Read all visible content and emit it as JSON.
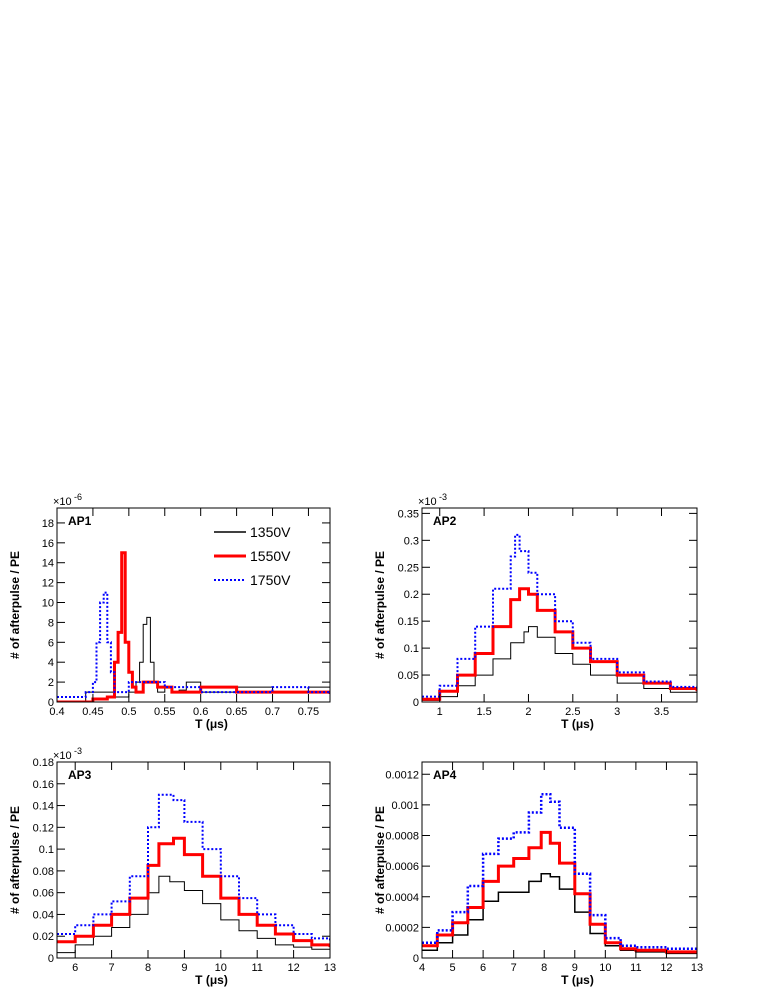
{
  "chart_data": [
    {
      "type": "line",
      "panel_label": "AP1",
      "ylabel": "# of afterpulse / PE",
      "xlabel": "T (μs)",
      "exponent": {
        "base": "×10",
        "power": "-6"
      },
      "xlim": [
        0.4,
        0.78
      ],
      "ylim": [
        0,
        19.5
      ],
      "xticks": [
        0.4,
        0.45,
        0.5,
        0.55,
        0.6,
        0.65,
        0.7,
        0.75
      ],
      "xtick_labels": [
        "0.4",
        "0.45",
        "0.5",
        "0.55",
        "0.6",
        "0.65",
        "0.7",
        "0.75"
      ],
      "yticks": [
        0,
        2,
        4,
        6,
        8,
        10,
        12,
        14,
        16,
        18
      ],
      "ytick_labels": [
        "0",
        "2",
        "4",
        "6",
        "8",
        "10",
        "12",
        "14",
        "16",
        "18"
      ],
      "legend": {
        "position": "top-right",
        "entries": [
          "1350V",
          "1550V",
          "1750V"
        ]
      },
      "series": [
        {
          "name": "1350V",
          "color": "#000000",
          "style": "solid",
          "width": 1,
          "x": [
            0.4,
            0.44,
            0.48,
            0.5,
            0.51,
            0.515,
            0.52,
            0.525,
            0.53,
            0.535,
            0.54,
            0.55,
            0.56,
            0.57,
            0.58,
            0.6,
            0.65,
            0.7,
            0.75,
            0.78
          ],
          "y": [
            0,
            1.0,
            0.5,
            1.0,
            2.0,
            4.0,
            7.8,
            8.5,
            4.0,
            2.0,
            1.0,
            1.5,
            1.0,
            1.2,
            2.0,
            1.0,
            1.5,
            1.0,
            1.5,
            1.0
          ]
        },
        {
          "name": "1550V",
          "color": "#ff0000",
          "style": "solid",
          "width": 3,
          "x": [
            0.4,
            0.45,
            0.47,
            0.48,
            0.485,
            0.49,
            0.495,
            0.5,
            0.505,
            0.51,
            0.52,
            0.54,
            0.56,
            0.6,
            0.65,
            0.7,
            0.75,
            0.78
          ],
          "y": [
            0,
            0.3,
            0.5,
            4.0,
            7.0,
            15.0,
            6.0,
            3.0,
            1.5,
            1.0,
            2.0,
            1.5,
            1.0,
            1.5,
            1.0,
            1.0,
            1.0,
            0.8
          ]
        },
        {
          "name": "1750V",
          "color": "#0000ff",
          "style": "dotted",
          "width": 2,
          "x": [
            0.4,
            0.44,
            0.45,
            0.455,
            0.46,
            0.465,
            0.47,
            0.475,
            0.48,
            0.49,
            0.5,
            0.52,
            0.55,
            0.6,
            0.65,
            0.7,
            0.75,
            0.78
          ],
          "y": [
            0.5,
            1.0,
            2.0,
            6.0,
            10.0,
            11.0,
            6.0,
            3.0,
            1.0,
            1.0,
            2.0,
            2.0,
            1.5,
            1.0,
            1.0,
            1.5,
            1.0,
            0.8
          ]
        }
      ]
    },
    {
      "type": "line",
      "panel_label": "AP2",
      "ylabel": "# of afterpulse / PE",
      "xlabel": "T (μs)",
      "exponent": {
        "base": "×10",
        "power": "-3"
      },
      "xlim": [
        0.8,
        3.9
      ],
      "ylim": [
        0,
        0.36
      ],
      "xticks": [
        1,
        1.5,
        2,
        2.5,
        3,
        3.5
      ],
      "xtick_labels": [
        "1",
        "1.5",
        "2",
        "2.5",
        "3",
        "3.5"
      ],
      "yticks": [
        0,
        0.05,
        0.1,
        0.15,
        0.2,
        0.25,
        0.3,
        0.35
      ],
      "ytick_labels": [
        "0",
        "0.05",
        "0.1",
        "0.15",
        "0.2",
        "0.25",
        "0.3",
        "0.35"
      ],
      "series": [
        {
          "name": "1350V",
          "color": "#000000",
          "style": "solid",
          "width": 1,
          "x": [
            0.8,
            1.0,
            1.2,
            1.4,
            1.6,
            1.8,
            1.95,
            2.0,
            2.1,
            2.3,
            2.5,
            2.7,
            3.0,
            3.3,
            3.6,
            3.9
          ],
          "y": [
            0.003,
            0.01,
            0.03,
            0.05,
            0.08,
            0.11,
            0.13,
            0.14,
            0.12,
            0.09,
            0.07,
            0.05,
            0.035,
            0.025,
            0.018,
            0.015
          ]
        },
        {
          "name": "1550V",
          "color": "#ff0000",
          "style": "solid",
          "width": 3,
          "x": [
            0.8,
            1.0,
            1.2,
            1.4,
            1.6,
            1.8,
            1.9,
            2.0,
            2.1,
            2.3,
            2.5,
            2.7,
            3.0,
            3.3,
            3.6,
            3.9
          ],
          "y": [
            0.005,
            0.02,
            0.05,
            0.09,
            0.14,
            0.19,
            0.21,
            0.2,
            0.17,
            0.13,
            0.1,
            0.075,
            0.05,
            0.035,
            0.025,
            0.02
          ]
        },
        {
          "name": "1750V",
          "color": "#0000ff",
          "style": "dotted",
          "width": 2,
          "x": [
            0.8,
            1.0,
            1.2,
            1.4,
            1.6,
            1.8,
            1.85,
            1.9,
            2.0,
            2.1,
            2.3,
            2.5,
            2.7,
            3.0,
            3.3,
            3.6,
            3.9
          ],
          "y": [
            0.01,
            0.03,
            0.08,
            0.14,
            0.21,
            0.27,
            0.31,
            0.28,
            0.24,
            0.2,
            0.15,
            0.11,
            0.08,
            0.055,
            0.038,
            0.028,
            0.022
          ]
        }
      ]
    },
    {
      "type": "line",
      "panel_label": "AP3",
      "ylabel": "# of afterpulse / PE",
      "xlabel": "T (μs)",
      "exponent": {
        "base": "×10",
        "power": "-3"
      },
      "xlim": [
        5.5,
        13
      ],
      "ylim": [
        0,
        0.18
      ],
      "xticks": [
        6,
        7,
        8,
        9,
        10,
        11,
        12,
        13
      ],
      "xtick_labels": [
        "6",
        "7",
        "8",
        "9",
        "10",
        "11",
        "12",
        "13"
      ],
      "yticks": [
        0,
        0.02,
        0.04,
        0.06,
        0.08,
        0.1,
        0.12,
        0.14,
        0.16,
        0.18
      ],
      "ytick_labels": [
        "0",
        "0.02",
        "0.04",
        "0.06",
        "0.08",
        "0.1",
        "0.12",
        "0.14",
        "0.16",
        "0.18"
      ],
      "series": [
        {
          "name": "1350V",
          "color": "#000000",
          "style": "solid",
          "width": 1,
          "x": [
            5.5,
            6.0,
            6.5,
            7.0,
            7.5,
            8.0,
            8.3,
            8.6,
            9.0,
            9.5,
            10.0,
            10.5,
            11.0,
            11.5,
            12.0,
            12.5,
            13.0
          ],
          "y": [
            0.005,
            0.012,
            0.02,
            0.028,
            0.04,
            0.06,
            0.075,
            0.07,
            0.062,
            0.05,
            0.035,
            0.025,
            0.018,
            0.012,
            0.01,
            0.008,
            0.007
          ]
        },
        {
          "name": "1550V",
          "color": "#ff0000",
          "style": "solid",
          "width": 3,
          "x": [
            5.5,
            6.0,
            6.5,
            7.0,
            7.5,
            8.0,
            8.3,
            8.7,
            9.0,
            9.5,
            10.0,
            10.5,
            11.0,
            11.5,
            12.0,
            12.5,
            13.0
          ],
          "y": [
            0.015,
            0.02,
            0.03,
            0.04,
            0.055,
            0.085,
            0.105,
            0.11,
            0.095,
            0.075,
            0.055,
            0.04,
            0.03,
            0.022,
            0.016,
            0.012,
            0.01
          ]
        },
        {
          "name": "1750V",
          "color": "#0000ff",
          "style": "dotted",
          "width": 2,
          "x": [
            5.5,
            6.0,
            6.5,
            7.0,
            7.5,
            8.0,
            8.3,
            8.7,
            9.0,
            9.5,
            10.0,
            10.5,
            11.0,
            11.5,
            12.0,
            12.5,
            13.0
          ],
          "y": [
            0.022,
            0.03,
            0.04,
            0.052,
            0.075,
            0.12,
            0.15,
            0.145,
            0.125,
            0.1,
            0.075,
            0.055,
            0.04,
            0.03,
            0.022,
            0.018,
            0.015
          ]
        }
      ]
    },
    {
      "type": "line",
      "panel_label": "AP4",
      "ylabel": "# of afterpulse / PE",
      "xlabel": "T (μs)",
      "xlim": [
        4,
        13
      ],
      "ylim": [
        0,
        0.00128
      ],
      "xticks": [
        4,
        5,
        6,
        7,
        8,
        9,
        10,
        11,
        12,
        13
      ],
      "xtick_labels": [
        "4",
        "5",
        "6",
        "7",
        "8",
        "9",
        "10",
        "11",
        "12",
        "13"
      ],
      "yticks": [
        0,
        0.0002,
        0.0004,
        0.0006,
        0.0008,
        0.001,
        0.0012
      ],
      "ytick_labels": [
        "0",
        "0.0002",
        "0.0004",
        "0.0006",
        "0.0008",
        "0.001",
        "0.0012"
      ],
      "series": [
        {
          "name": "1350V",
          "color": "#000000",
          "style": "solid",
          "width": 1.5,
          "x": [
            4.0,
            4.5,
            5.0,
            5.5,
            6.0,
            6.5,
            7.0,
            7.5,
            7.9,
            8.2,
            8.5,
            9.0,
            9.5,
            10.0,
            10.5,
            11.0,
            12.0,
            13.0
          ],
          "y": [
            5e-05,
            0.0001,
            0.00015,
            0.00025,
            0.00037,
            0.00043,
            0.00043,
            0.0005,
            0.00055,
            0.00053,
            0.00045,
            0.0003,
            0.00016,
            8e-05,
            5e-05,
            4e-05,
            3e-05,
            3e-05
          ]
        },
        {
          "name": "1550V",
          "color": "#ff0000",
          "style": "solid",
          "width": 3,
          "x": [
            4.0,
            4.5,
            5.0,
            5.5,
            6.0,
            6.5,
            7.0,
            7.5,
            7.9,
            8.2,
            8.5,
            9.0,
            9.5,
            10.0,
            10.5,
            11.0,
            12.0,
            13.0
          ],
          "y": [
            8e-05,
            0.00015,
            0.00023,
            0.00033,
            0.0005,
            0.0006,
            0.00065,
            0.00072,
            0.00082,
            0.00075,
            0.00062,
            0.00042,
            0.00022,
            0.0001,
            6e-05,
            5e-05,
            4e-05,
            4e-05
          ]
        },
        {
          "name": "1750V",
          "color": "#0000ff",
          "style": "dotted",
          "width": 2.5,
          "x": [
            4.0,
            4.5,
            5.0,
            5.5,
            6.0,
            6.5,
            7.0,
            7.5,
            7.9,
            8.2,
            8.5,
            9.0,
            9.5,
            10.0,
            10.5,
            11.0,
            12.0,
            13.0
          ],
          "y": [
            0.0001,
            0.00018,
            0.0003,
            0.00047,
            0.00068,
            0.00078,
            0.00082,
            0.00095,
            0.00107,
            0.00102,
            0.00085,
            0.00055,
            0.00028,
            0.00013,
            8e-05,
            7e-05,
            6e-05,
            6e-05
          ]
        }
      ]
    }
  ]
}
